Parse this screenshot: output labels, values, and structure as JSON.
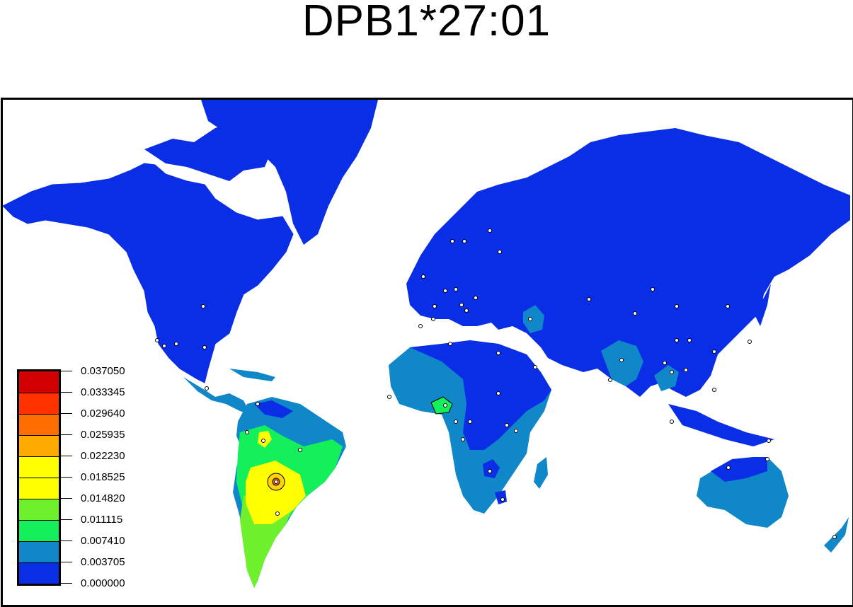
{
  "title": "DPB1*27:01",
  "colors": {
    "ocean": "#ffffff",
    "land_min": "#0a2de6",
    "levels": [
      "#0a2de6",
      "#0f87c8",
      "#14f05a",
      "#6ef02d",
      "#ffff00",
      "#ffd200",
      "#ffaa00",
      "#ff6e00",
      "#ff3200",
      "#d20000"
    ]
  },
  "legend": {
    "labels": [
      "0.037050",
      "0.033345",
      "0.029640",
      "0.025935",
      "0.022230",
      "0.018525",
      "0.014820",
      "0.011115",
      "0.007410",
      "0.003705",
      "0.000000"
    ]
  }
}
